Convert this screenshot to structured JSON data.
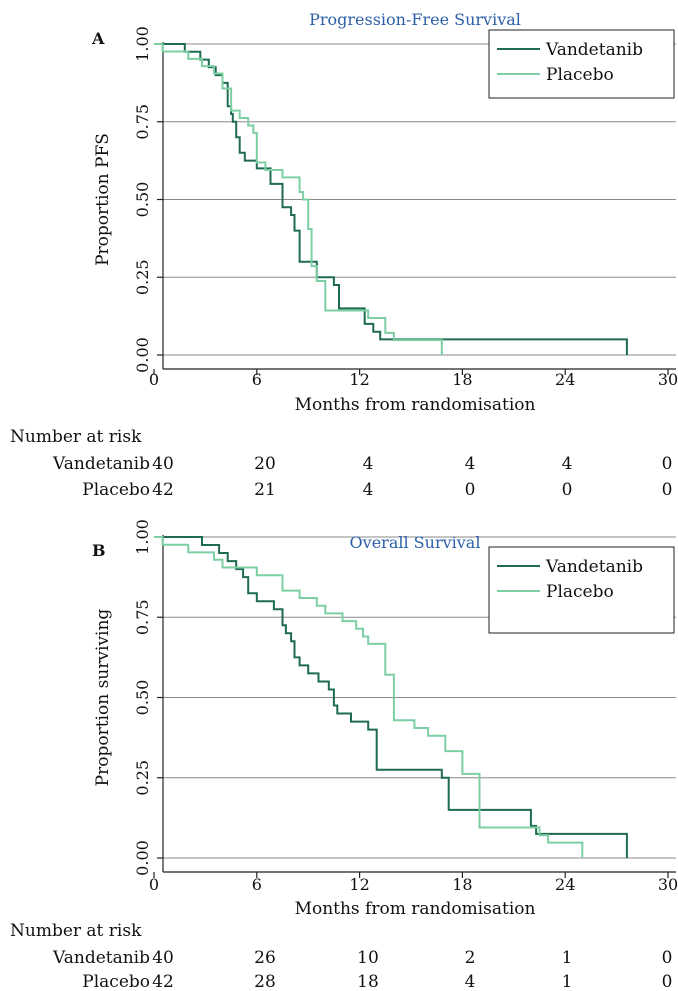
{
  "chart_data": [
    {
      "panel_letter": "A",
      "type": "line",
      "step": true,
      "title": "Progression-Free Survival",
      "xlabel": "Months from randomisation",
      "ylabel": "Proportion PFS",
      "xlim": [
        0,
        30
      ],
      "ylim": [
        0,
        1
      ],
      "xticks": [
        0,
        6,
        12,
        18,
        24,
        30
      ],
      "yticks": [
        "0.00",
        "0.25",
        "0.50",
        "0.75",
        "1.00"
      ],
      "grid": "horizontal",
      "legend_position": "top-right",
      "series": [
        {
          "name": "Vandetanib",
          "color": "#1e6b50",
          "x": [
            0,
            1.8,
            2.7,
            3.2,
            3.6,
            4.0,
            4.3,
            4.5,
            4.6,
            4.8,
            5.0,
            5.3,
            6.0,
            6.8,
            7.5,
            8.0,
            8.2,
            8.5,
            9.5,
            10.5,
            10.8,
            12.3,
            12.8,
            13.2,
            27.6
          ],
          "y": [
            1.0,
            0.975,
            0.95,
            0.925,
            0.9,
            0.875,
            0.8,
            0.775,
            0.75,
            0.7,
            0.65,
            0.625,
            0.6,
            0.55,
            0.475,
            0.45,
            0.4,
            0.3,
            0.25,
            0.225,
            0.15,
            0.1,
            0.075,
            0.05,
            0.0
          ]
        },
        {
          "name": "Placebo",
          "color": "#7ccfa2",
          "x": [
            0,
            0.5,
            2.0,
            2.8,
            3.5,
            4.0,
            4.5,
            5.0,
            5.5,
            5.8,
            6.0,
            6.5,
            7.5,
            8.5,
            8.7,
            9.0,
            9.2,
            9.5,
            10.0,
            12.5,
            13.5,
            14.0,
            16.8
          ],
          "y": [
            1.0,
            0.976,
            0.952,
            0.929,
            0.905,
            0.857,
            0.786,
            0.762,
            0.738,
            0.714,
            0.619,
            0.595,
            0.571,
            0.524,
            0.5,
            0.405,
            0.286,
            0.238,
            0.143,
            0.119,
            0.071,
            0.048,
            0.0
          ]
        }
      ],
      "risk_table": {
        "heading": "Number at risk",
        "rows": [
          {
            "label": "Vandetanib",
            "values": [
              "40",
              "20",
              "4",
              "4",
              "4",
              "0"
            ]
          },
          {
            "label": "Placebo",
            "values": [
              "42",
              "21",
              "4",
              "0",
              "0",
              "0"
            ]
          }
        ]
      }
    },
    {
      "panel_letter": "B",
      "type": "line",
      "step": true,
      "title": "Overall Survival",
      "xlabel": "Months from randomisation",
      "ylabel": "Proportion surviving",
      "xlim": [
        0,
        30
      ],
      "ylim": [
        0,
        1
      ],
      "xticks": [
        0,
        6,
        12,
        18,
        24,
        30
      ],
      "yticks": [
        "0.00",
        "0.25",
        "0.50",
        "0.75",
        "1.00"
      ],
      "grid": "horizontal",
      "legend_position": "top-right",
      "series": [
        {
          "name": "Vandetanib",
          "color": "#1e6b50",
          "x": [
            0,
            2.8,
            3.8,
            4.3,
            4.8,
            5.2,
            5.5,
            6.0,
            7.0,
            7.5,
            7.7,
            8.0,
            8.2,
            8.5,
            9.0,
            9.6,
            10.2,
            10.5,
            10.7,
            11.5,
            12.5,
            13.0,
            16.8,
            17.2,
            22.0,
            22.3,
            27.6
          ],
          "y": [
            1.0,
            0.975,
            0.95,
            0.925,
            0.9,
            0.875,
            0.825,
            0.8,
            0.775,
            0.725,
            0.7,
            0.675,
            0.625,
            0.6,
            0.575,
            0.55,
            0.525,
            0.475,
            0.45,
            0.425,
            0.4,
            0.275,
            0.25,
            0.15,
            0.1,
            0.075,
            0.0
          ]
        },
        {
          "name": "Placebo",
          "color": "#7ccfa2",
          "x": [
            0,
            0.5,
            2.0,
            3.5,
            4.0,
            6.0,
            7.5,
            8.5,
            9.5,
            10.0,
            11.0,
            11.8,
            12.2,
            12.5,
            13.5,
            14.0,
            15.2,
            16.0,
            17.0,
            18.0,
            19.0,
            22.5,
            23.0,
            25.0
          ],
          "y": [
            1.0,
            0.976,
            0.952,
            0.929,
            0.905,
            0.881,
            0.833,
            0.81,
            0.786,
            0.762,
            0.738,
            0.714,
            0.69,
            0.667,
            0.571,
            0.429,
            0.405,
            0.381,
            0.333,
            0.262,
            0.095,
            0.071,
            0.048,
            0.0
          ]
        }
      ],
      "risk_table": {
        "heading": "Number at risk",
        "rows": [
          {
            "label": "Vandetanib",
            "values": [
              "40",
              "26",
              "10",
              "2",
              "1",
              "0"
            ]
          },
          {
            "label": "Placebo",
            "values": [
              "42",
              "28",
              "18",
              "4",
              "1",
              "0"
            ]
          }
        ]
      }
    }
  ]
}
